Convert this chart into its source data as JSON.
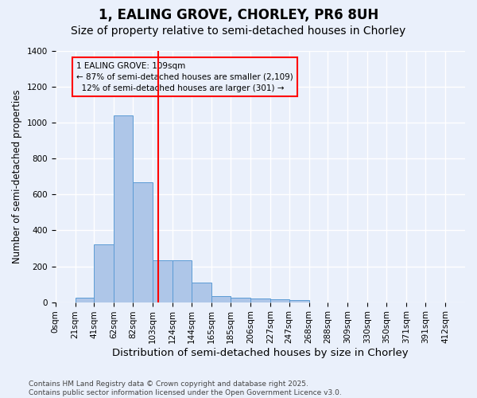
{
  "title": "1, EALING GROVE, CHORLEY, PR6 8UH",
  "subtitle": "Size of property relative to semi-detached houses in Chorley",
  "xlabel": "Distribution of semi-detached houses by size in Chorley",
  "ylabel": "Number of semi-detached properties",
  "bar_labels": [
    "0sqm",
    "21sqm",
    "41sqm",
    "62sqm",
    "82sqm",
    "103sqm",
    "124sqm",
    "144sqm",
    "165sqm",
    "185sqm",
    "206sqm",
    "227sqm",
    "247sqm",
    "268sqm",
    "288sqm",
    "309sqm",
    "330sqm",
    "350sqm",
    "371sqm",
    "391sqm",
    "412sqm"
  ],
  "bar_heights": [
    0,
    25,
    320,
    1040,
    670,
    235,
    235,
    110,
    35,
    25,
    20,
    15,
    12,
    0,
    0,
    0,
    0,
    0,
    0,
    0,
    0
  ],
  "bin_edges": [
    0,
    21,
    41,
    62,
    82,
    103,
    124,
    144,
    165,
    185,
    206,
    227,
    247,
    268,
    288,
    309,
    330,
    350,
    371,
    391,
    412
  ],
  "bar_color": "#aec6e8",
  "bar_edge_color": "#5b9bd5",
  "vline_x": 109,
  "vline_color": "red",
  "annotation_line1": "1 EALING GROVE: 109sqm",
  "annotation_line2": "← 87% of semi-detached houses are smaller (2,109)",
  "annotation_line3": "  12% of semi-detached houses are larger (301) →",
  "ylim": [
    0,
    1400
  ],
  "yticks": [
    0,
    200,
    400,
    600,
    800,
    1000,
    1200,
    1400
  ],
  "bg_color": "#eaf0fb",
  "grid_color": "#ffffff",
  "footer": "Contains HM Land Registry data © Crown copyright and database right 2025.\nContains public sector information licensed under the Open Government Licence v3.0.",
  "title_fontsize": 12,
  "subtitle_fontsize": 10,
  "xlabel_fontsize": 9.5,
  "ylabel_fontsize": 8.5,
  "tick_fontsize": 7.5,
  "annotation_fontsize": 7.5,
  "footer_fontsize": 6.5
}
